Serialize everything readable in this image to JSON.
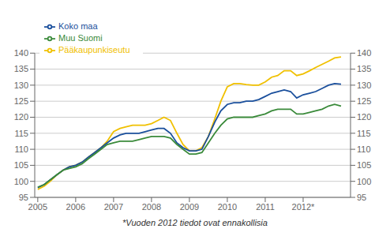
{
  "chart_data": {
    "type": "line",
    "annotations": [
      "*Vuoden 2012 tiedot ovat ennakollisia"
    ],
    "x": [
      2005.0,
      2005.17,
      2005.33,
      2005.5,
      2005.67,
      2005.83,
      2006.0,
      2006.17,
      2006.33,
      2006.5,
      2006.67,
      2006.83,
      2007.0,
      2007.17,
      2007.33,
      2007.5,
      2007.67,
      2007.83,
      2008.0,
      2008.17,
      2008.33,
      2008.5,
      2008.67,
      2008.83,
      2009.0,
      2009.17,
      2009.33,
      2009.5,
      2009.67,
      2009.83,
      2010.0,
      2010.17,
      2010.33,
      2010.5,
      2010.67,
      2010.83,
      2011.0,
      2011.17,
      2011.33,
      2011.5,
      2011.67,
      2011.83,
      2012.0,
      2012.17,
      2012.33,
      2012.5,
      2012.67,
      2012.83,
      2013.0
    ],
    "series": [
      {
        "name": "Pääkaupunkiseutu",
        "color": "#f0c000",
        "values": [
          97.5,
          98.5,
          100.0,
          102.0,
          103.5,
          104.5,
          105.0,
          106.0,
          107.5,
          109.0,
          110.5,
          112.5,
          115.5,
          116.5,
          117.0,
          117.5,
          117.5,
          117.5,
          118.0,
          119.0,
          120.0,
          119.0,
          115.0,
          111.5,
          109.5,
          109.5,
          110.5,
          114.0,
          119.5,
          125.0,
          129.5,
          130.5,
          130.5,
          130.2,
          130.0,
          130.0,
          131.0,
          132.5,
          133.0,
          134.5,
          134.5,
          133.0,
          133.5,
          134.5,
          135.5,
          136.5,
          137.5,
          138.5,
          138.8
        ]
      },
      {
        "name": "Koko maa",
        "color": "#1a4f9c",
        "values": [
          98.0,
          99.0,
          100.5,
          102.0,
          103.5,
          104.5,
          105.0,
          106.0,
          107.5,
          109.0,
          110.5,
          112.0,
          113.5,
          114.5,
          115.0,
          115.0,
          115.0,
          115.5,
          116.0,
          116.5,
          116.5,
          115.0,
          112.0,
          110.5,
          109.5,
          109.5,
          110.0,
          114.0,
          118.5,
          122.0,
          124.0,
          124.5,
          124.5,
          125.0,
          125.0,
          125.5,
          126.5,
          127.5,
          128.0,
          128.5,
          128.0,
          126.0,
          127.0,
          127.5,
          128.0,
          129.0,
          130.0,
          130.5,
          130.3
        ]
      },
      {
        "name": "Muu Suomi",
        "color": "#3a8a3a",
        "values": [
          98.2,
          99.0,
          100.5,
          102.0,
          103.5,
          104.0,
          104.5,
          105.5,
          107.0,
          108.5,
          110.0,
          111.5,
          112.0,
          112.5,
          112.5,
          112.5,
          113.0,
          113.5,
          114.0,
          114.0,
          114.0,
          113.5,
          111.5,
          110.0,
          108.5,
          108.5,
          109.0,
          112.0,
          115.0,
          117.5,
          119.5,
          120.0,
          120.0,
          120.0,
          120.0,
          120.5,
          121.0,
          122.0,
          122.5,
          122.5,
          122.5,
          121.0,
          121.0,
          121.5,
          122.0,
          122.5,
          123.5,
          124.0,
          123.5
        ]
      }
    ],
    "xlim": [
      2004.92,
      2013.25
    ],
    "xticks": [
      2005,
      2006,
      2007,
      2008,
      2009,
      2010,
      2011,
      {
        "value": 2012,
        "label": "2012*"
      }
    ],
    "ylim": [
      95,
      140
    ],
    "yticks": [
      95,
      100,
      105,
      110,
      115,
      120,
      125,
      130,
      135,
      140
    ],
    "y2lim": [
      95,
      140
    ],
    "y2ticks": [
      95,
      100,
      105,
      110,
      115,
      120,
      125,
      130,
      135,
      140
    ],
    "grid": "y",
    "legend": "upper left"
  }
}
